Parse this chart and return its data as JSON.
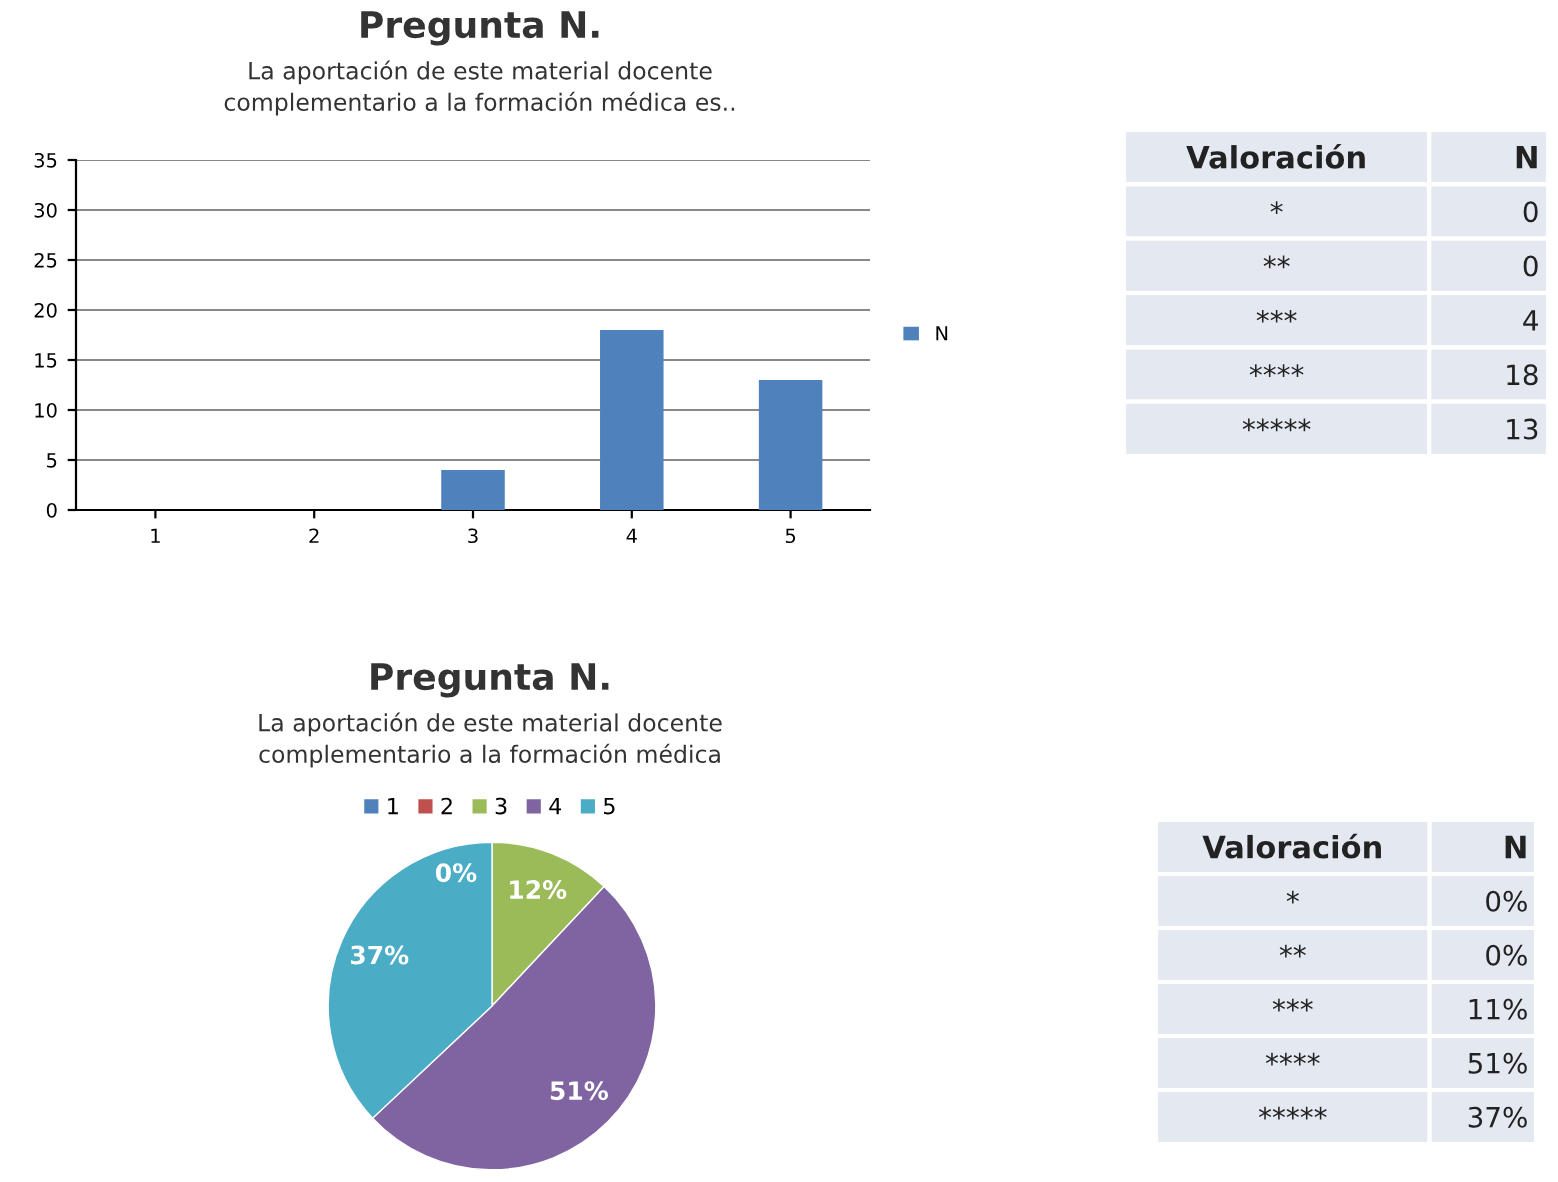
{
  "chart_data": [
    {
      "type": "bar",
      "title": "Pregunta N.",
      "subtitle": "La aportación de este material docente complementario a la formación médica es..",
      "categories": [
        "1",
        "2",
        "3",
        "4",
        "5"
      ],
      "series": [
        {
          "name": "N",
          "color": "#4f81bd",
          "values": [
            0,
            0,
            4,
            18,
            13
          ]
        }
      ],
      "ylim": [
        0,
        35
      ],
      "yticks": [
        0,
        5,
        10,
        15,
        20,
        25,
        30,
        35
      ],
      "grid": "y",
      "legend": "right"
    },
    {
      "type": "other",
      "annotations": [
        "Valoración",
        "N",
        "*",
        "0",
        "**",
        "0",
        "***",
        "4",
        "****",
        "18",
        "*****",
        "13"
      ]
    },
    {
      "type": "pie",
      "title": "Pregunta N.",
      "subtitle": "La aportación de este material docente complementario a la formación médica",
      "categories": [
        "1",
        "2",
        "3",
        "4",
        "5"
      ],
      "values": [
        0,
        0,
        12,
        51,
        37
      ],
      "colors": [
        "#4f81bd",
        "#c0504d",
        "#9bbb59",
        "#8064a2",
        "#4bacc6"
      ],
      "value_labels": [
        "0%",
        null,
        "12%",
        "51%",
        "37%"
      ],
      "legend": "top"
    },
    {
      "type": "other",
      "annotations": [
        "Valoración",
        "N",
        "*",
        "0%",
        "**",
        "0%",
        "***",
        "11%",
        "****",
        "51%",
        "*****",
        "37%"
      ]
    }
  ]
}
